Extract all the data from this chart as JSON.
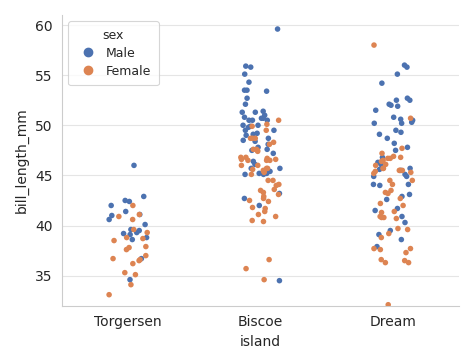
{
  "title": "",
  "xlabel": "island",
  "ylabel": "bill_length_mm",
  "xlim": [
    -0.5,
    2.5
  ],
  "ylim": [
    32,
    61
  ],
  "yticks": [
    35,
    40,
    45,
    50,
    55,
    60
  ],
  "categories": [
    "Torgersen",
    "Biscoe",
    "Dream"
  ],
  "male_color": "#4C72B0",
  "female_color": "#DD8452",
  "legend_title": "sex",
  "legend_male": "Male",
  "legend_female": "Female",
  "bg_color": "#FFFFFF",
  "grid_color": "#E5E5E5",
  "figsize": [
    4.74,
    3.64
  ],
  "dpi": 100,
  "jitter": 0.15,
  "point_size": 25,
  "random_seed": 0,
  "male_torgersen": [
    39.1,
    39.3,
    38.6,
    34.6,
    42.5,
    46.0,
    41.4,
    42.9,
    38.8,
    39.2,
    41.1,
    42.4,
    39.6,
    40.1,
    42.0,
    41.0,
    40.6,
    36.7,
    39.5
  ],
  "female_torgersen": [
    38.7,
    39.3,
    36.6,
    38.8,
    41.1,
    36.7,
    39.6,
    38.5,
    37.9,
    37.8,
    35.3,
    40.9,
    36.5,
    37.6,
    34.1,
    33.1,
    42.0,
    40.6,
    36.2,
    37.0,
    35.1
  ],
  "male_biscoe": [
    46.1,
    50.0,
    48.7,
    50.0,
    47.6,
    50.5,
    50.5,
    55.9,
    49.1,
    48.4,
    50.7,
    47.8,
    45.7,
    55.1,
    54.3,
    52.7,
    53.4,
    55.8,
    45.2,
    49.9,
    53.5,
    45.1,
    45.2,
    49.0,
    49.8,
    51.3,
    47.2,
    53.5,
    49.5,
    50.8,
    34.5,
    42.0,
    43.2,
    51.0,
    45.4,
    51.3,
    47.5,
    52.1,
    50.5,
    49.5,
    46.4,
    49.2,
    48.5,
    48.1,
    51.4,
    45.7,
    50.7,
    42.7,
    45.1,
    59.6
  ],
  "female_biscoe": [
    47.6,
    46.7,
    46.8,
    36.6,
    49.9,
    46.5,
    45.4,
    46.6,
    48.3,
    46.8,
    45.7,
    45.1,
    46.5,
    44.1,
    48.7,
    42.7,
    45.3,
    43.3,
    42.5,
    43.1,
    41.1,
    43.6,
    42.4,
    48.7,
    44.5,
    47.6,
    40.9,
    42.9,
    46.6,
    44.5,
    48.1,
    43.5,
    50.5,
    49.5,
    47.5,
    41.4,
    46.0,
    45.6,
    50.1,
    40.5,
    41.7,
    47.4,
    35.7,
    41.8,
    45.5,
    34.6,
    40.4,
    46.5,
    45.7,
    46.0,
    44.0,
    48.7
  ],
  "male_dream": [
    39.5,
    44.1,
    40.3,
    45.5,
    37.9,
    43.1,
    38.6,
    50.5,
    39.1,
    47.8,
    49.1,
    41.7,
    46.3,
    44.9,
    45.1,
    47.5,
    52.1,
    51.5,
    50.6,
    52.0,
    50.2,
    52.7,
    50.3,
    55.8,
    44.1,
    48.7,
    42.9,
    44.0,
    50.8,
    41.5,
    46.1,
    44.9,
    56.0,
    54.2,
    42.6,
    52.5,
    49.3,
    50.2,
    45.6,
    51.9,
    49.5,
    46.8,
    45.7,
    55.1,
    48.2,
    52.5,
    40.9
  ],
  "female_dream": [
    36.3,
    39.2,
    38.8,
    42.2,
    37.7,
    45.5,
    44.1,
    47.2,
    46.5,
    45.4,
    46.7,
    43.3,
    46.8,
    43.2,
    40.9,
    37.7,
    46.0,
    45.5,
    43.5,
    41.4,
    36.3,
    44.5,
    40.8,
    45.5,
    45.7,
    45.2,
    42.0,
    46.1,
    32.1,
    40.7,
    37.3,
    39.7,
    39.6,
    40.8,
    36.5,
    37.6,
    45.3,
    42.7,
    41.3,
    50.7,
    47.7,
    45.7,
    46.4,
    46.9,
    58.0,
    36.6,
    44.5,
    46.7
  ]
}
